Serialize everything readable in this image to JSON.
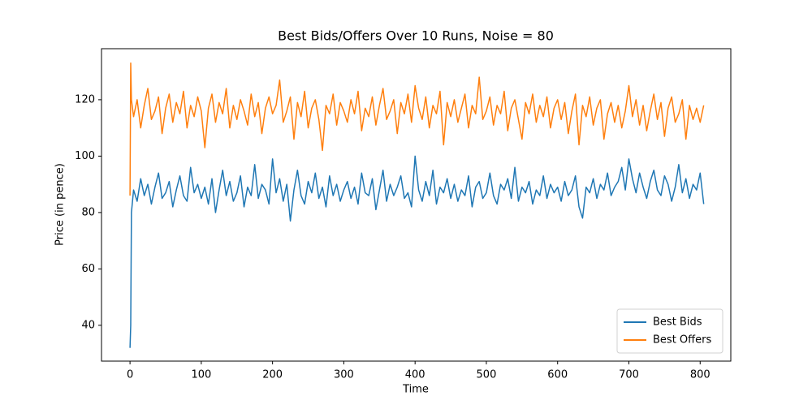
{
  "chart_data": {
    "type": "line",
    "title": "Best Bids/Offers Over 10 Runs, Noise = 80",
    "xlabel": "Time",
    "ylabel": "Price (in pence)",
    "x": [
      0,
      1,
      2,
      5,
      10,
      15,
      20,
      25,
      30,
      35,
      40,
      45,
      50,
      55,
      60,
      65,
      70,
      75,
      80,
      85,
      90,
      95,
      100,
      105,
      110,
      115,
      120,
      125,
      130,
      135,
      140,
      145,
      150,
      155,
      160,
      165,
      170,
      175,
      180,
      185,
      190,
      195,
      200,
      205,
      210,
      215,
      220,
      225,
      230,
      235,
      240,
      245,
      250,
      255,
      260,
      265,
      270,
      275,
      280,
      285,
      290,
      295,
      300,
      305,
      310,
      315,
      320,
      325,
      330,
      335,
      340,
      345,
      350,
      355,
      360,
      365,
      370,
      375,
      380,
      385,
      390,
      395,
      400,
      405,
      410,
      415,
      420,
      425,
      430,
      435,
      440,
      445,
      450,
      455,
      460,
      465,
      470,
      475,
      480,
      485,
      490,
      495,
      500,
      505,
      510,
      515,
      520,
      525,
      530,
      535,
      540,
      545,
      550,
      555,
      560,
      565,
      570,
      575,
      580,
      585,
      590,
      595,
      600,
      605,
      610,
      615,
      620,
      625,
      630,
      635,
      640,
      645,
      650,
      655,
      660,
      665,
      670,
      675,
      680,
      685,
      690,
      695,
      700,
      705,
      710,
      715,
      720,
      725,
      730,
      735,
      740,
      745,
      750,
      755,
      760,
      765,
      770,
      775,
      780,
      785,
      790,
      795,
      800,
      805
    ],
    "series": [
      {
        "name": "Best Bids",
        "color": "#1f77b4",
        "values": [
          32,
          40,
          80,
          88,
          84,
          92,
          86,
          90,
          83,
          89,
          94,
          85,
          87,
          91,
          82,
          88,
          93,
          86,
          84,
          96,
          87,
          90,
          85,
          89,
          83,
          92,
          80,
          88,
          95,
          86,
          91,
          84,
          87,
          93,
          82,
          89,
          86,
          97,
          85,
          90,
          88,
          83,
          99,
          87,
          92,
          84,
          90,
          77,
          88,
          95,
          86,
          83,
          91,
          87,
          94,
          85,
          89,
          82,
          93,
          86,
          90,
          84,
          88,
          91,
          85,
          89,
          83,
          94,
          87,
          86,
          92,
          81,
          88,
          95,
          84,
          90,
          86,
          89,
          93,
          85,
          87,
          82,
          100,
          88,
          84,
          91,
          86,
          95,
          83,
          89,
          87,
          92,
          85,
          90,
          84,
          88,
          86,
          93,
          82,
          89,
          91,
          85,
          87,
          94,
          86,
          83,
          90,
          88,
          92,
          85,
          96,
          84,
          89,
          87,
          91,
          83,
          88,
          86,
          93,
          85,
          90,
          87,
          89,
          84,
          91,
          86,
          88,
          93,
          82,
          78,
          89,
          87,
          92,
          85,
          90,
          88,
          94,
          86,
          89,
          91,
          96,
          88,
          99,
          92,
          87,
          94,
          89,
          85,
          91,
          95,
          88,
          86,
          93,
          90,
          84,
          89,
          97,
          87,
          92,
          85,
          90,
          88,
          94,
          83
        ]
      },
      {
        "name": "Best Offers",
        "color": "#ff7f0e",
        "values": [
          86,
          133,
          120,
          114,
          120,
          110,
          118,
          124,
          113,
          116,
          121,
          108,
          117,
          122,
          112,
          119,
          115,
          123,
          110,
          118,
          114,
          121,
          116,
          103,
          117,
          122,
          112,
          119,
          115,
          124,
          110,
          118,
          113,
          120,
          116,
          111,
          122,
          114,
          119,
          108,
          117,
          121,
          115,
          118,
          127,
          112,
          116,
          121,
          106,
          119,
          114,
          123,
          110,
          117,
          120,
          113,
          102,
          118,
          115,
          122,
          111,
          119,
          116,
          112,
          120,
          115,
          123,
          109,
          117,
          114,
          121,
          111,
          118,
          124,
          113,
          116,
          120,
          108,
          119,
          115,
          122,
          112,
          125,
          117,
          113,
          121,
          110,
          118,
          115,
          123,
          104,
          119,
          114,
          120,
          112,
          117,
          122,
          110,
          118,
          115,
          128,
          113,
          116,
          121,
          111,
          118,
          115,
          123,
          109,
          117,
          120,
          113,
          106,
          119,
          115,
          122,
          112,
          118,
          114,
          121,
          110,
          117,
          120,
          113,
          119,
          108,
          116,
          122,
          104,
          118,
          114,
          121,
          111,
          117,
          120,
          106,
          115,
          119,
          112,
          118,
          110,
          116,
          125,
          114,
          120,
          111,
          118,
          109,
          116,
          122,
          113,
          119,
          107,
          117,
          121,
          112,
          115,
          120,
          106,
          118,
          113,
          117,
          112,
          118
        ]
      }
    ],
    "xlim": [
      -40,
      843
    ],
    "xticks": [
      0,
      100,
      200,
      300,
      400,
      500,
      600,
      700,
      800
    ],
    "ylim": [
      27.3,
      138.1
    ],
    "yticks": [
      40,
      60,
      80,
      100,
      120
    ],
    "legend": "lower right"
  }
}
